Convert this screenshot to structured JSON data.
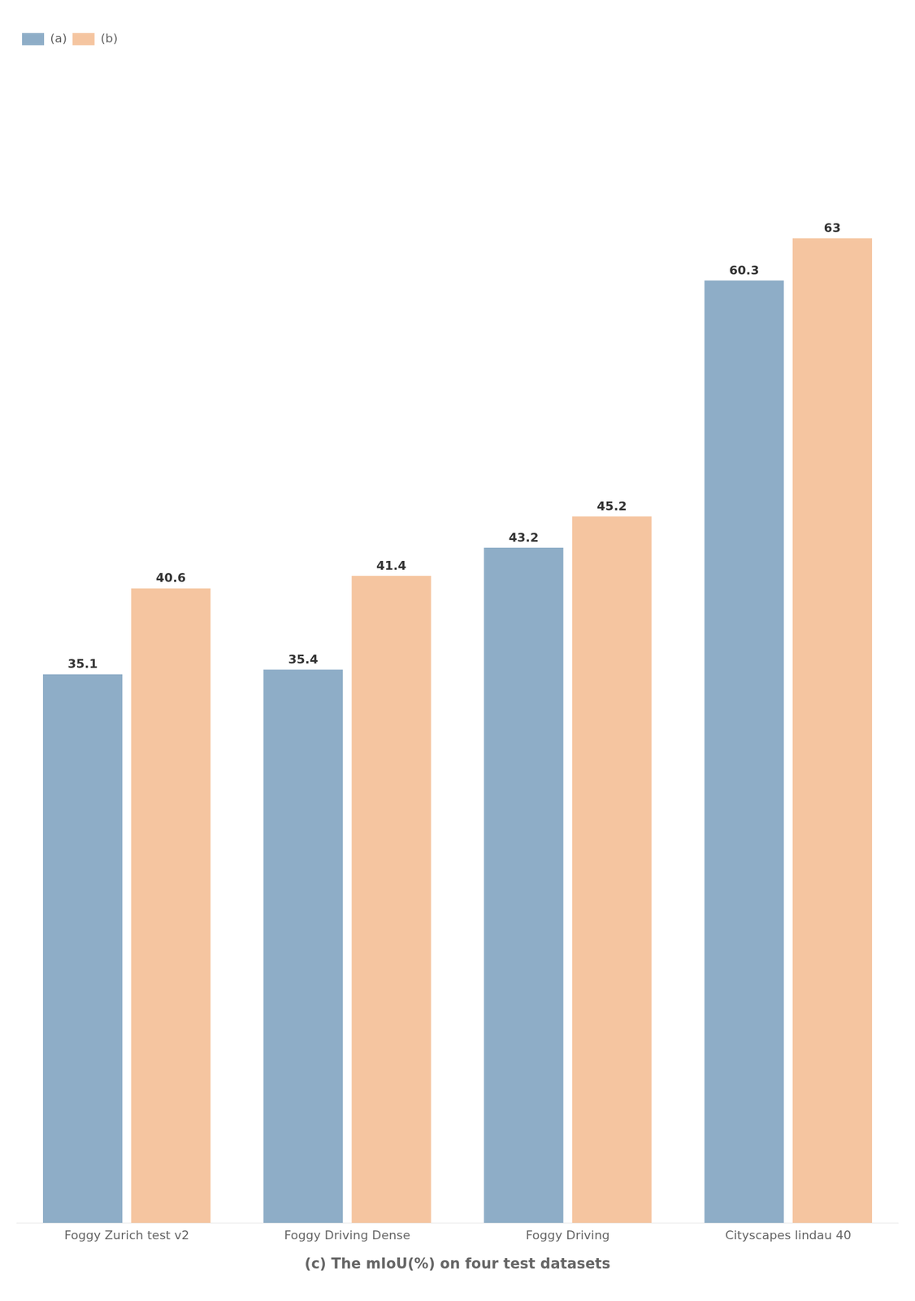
{
  "chart_data": {
    "type": "bar",
    "title": "(c) The mIoU(%) on four test datasets",
    "categories": [
      "Foggy Zurich test v2",
      "Foggy Driving Dense",
      "Foggy Driving",
      "Cityscapes lindau 40"
    ],
    "series": [
      {
        "name": "(a)",
        "color": "#8eadc7",
        "values": [
          35.1,
          35.4,
          43.2,
          60.3
        ]
      },
      {
        "name": "(b)",
        "color": "#f5c5a0",
        "values": [
          40.6,
          41.4,
          45.2,
          63.0
        ]
      }
    ],
    "ylim": [
      0,
      75
    ],
    "grid": false,
    "legend": "upper left",
    "data_labels": true,
    "tick_labels": "x"
  }
}
